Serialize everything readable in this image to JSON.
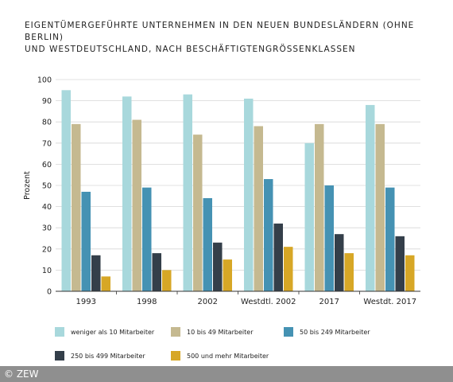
{
  "title_lines": [
    "Eigentümergeführte Unternehmen in den neuen Bundesländern (ohne Berlin)",
    "und Westdeutschland, nach Beschäftigtengrößenklassen"
  ],
  "footer": {
    "copyright": "© ZEW"
  },
  "colors": {
    "s0": "#a8d8dc",
    "s1": "#c5b990",
    "s2": "#4592b3",
    "s3": "#343f4a",
    "s4": "#d7a726"
  },
  "chart_data": {
    "type": "bar",
    "ylabel": "Prozent",
    "ylim": [
      0,
      100
    ],
    "yticks": [
      0,
      10,
      20,
      30,
      40,
      50,
      60,
      70,
      80,
      90,
      100
    ],
    "grid": "horizontal",
    "legend_position": "bottom",
    "categories": [
      "1993",
      "1998",
      "2002",
      "Westdtl. 2002",
      "2017",
      "Westdt. 2017"
    ],
    "series": [
      {
        "name": "weniger als 10 Mitarbeiter",
        "values": [
          95,
          92,
          93,
          91,
          70,
          88
        ]
      },
      {
        "name": "10 bis 49 Mitarbeiter",
        "values": [
          79,
          81,
          74,
          78,
          79,
          79
        ]
      },
      {
        "name": "50 bis 249 Mitarbeiter",
        "values": [
          47,
          49,
          44,
          53,
          50,
          49
        ]
      },
      {
        "name": "250 bis 499 Mitarbeiter",
        "values": [
          17,
          18,
          23,
          32,
          27,
          26
        ]
      },
      {
        "name": "500 und mehr Mitarbeiter",
        "values": [
          7,
          10,
          15,
          21,
          18,
          17
        ]
      }
    ]
  }
}
